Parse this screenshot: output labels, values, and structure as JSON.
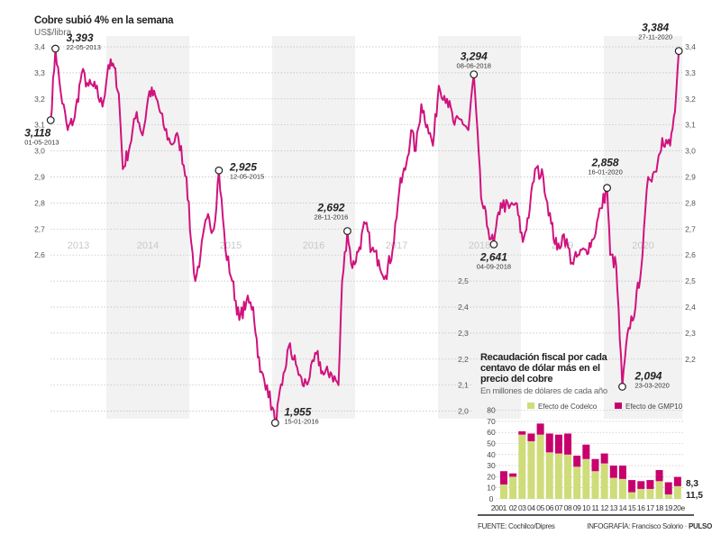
{
  "colors": {
    "line": "#d0127d",
    "codelco": "#cfdc7a",
    "gmp10": "#c8006e",
    "shade": "#f2f2f2",
    "grid": "#bbbbbb"
  },
  "chart_data": [
    {
      "type": "line",
      "title": "Cobre subió 4% en la semana",
      "ylabel": "US$/libra",
      "ylim": [
        2.0,
        3.4
      ],
      "yticks": [
        "3,4",
        "3,3",
        "3,2",
        "3,1",
        "3,0",
        "2,9",
        "2,8",
        "2,7",
        "2,6",
        "2,5",
        "2,4",
        "2,3",
        "2,2",
        "2,1",
        "2,0"
      ],
      "right_yticks": [
        "3,4",
        "3,3",
        "3,2",
        "3,1",
        "3,0",
        "2,9",
        "2,8",
        "2,7",
        "2,6",
        "2,5",
        "2,4",
        "2,3",
        "2,2"
      ],
      "year_labels": [
        "2013",
        "2014",
        "2015",
        "2016",
        "2017",
        "2018",
        "2019",
        "2020"
      ],
      "grid": true,
      "series": {
        "x": [
          "2013-05-01",
          "2013-05-22",
          "2013-06-15",
          "2013-07-15",
          "2013-08-15",
          "2013-09-15",
          "2013-10-15",
          "2013-11-15",
          "2013-12-15",
          "2014-01-10",
          "2014-02-05",
          "2014-02-25",
          "2014-03-15",
          "2014-04-15",
          "2014-05-15",
          "2014-06-10",
          "2014-07-10",
          "2014-08-10",
          "2014-09-10",
          "2014-10-10",
          "2014-11-15",
          "2014-12-20",
          "2015-01-10",
          "2015-01-28",
          "2015-02-20",
          "2015-03-20",
          "2015-04-20",
          "2015-05-12",
          "2015-06-10",
          "2015-07-10",
          "2015-08-10",
          "2015-09-10",
          "2015-10-10",
          "2015-11-10",
          "2015-12-10",
          "2016-01-15",
          "2016-02-15",
          "2016-03-15",
          "2016-04-15",
          "2016-05-15",
          "2016-06-15",
          "2016-07-15",
          "2016-08-15",
          "2016-09-15",
          "2016-10-20",
          "2016-11-05",
          "2016-11-28",
          "2016-12-20",
          "2017-01-20",
          "2017-02-15",
          "2017-03-15",
          "2017-04-15",
          "2017-05-15",
          "2017-06-15",
          "2017-07-15",
          "2017-08-15",
          "2017-09-05",
          "2017-09-25",
          "2017-10-20",
          "2017-11-15",
          "2017-12-10",
          "2018-01-05",
          "2018-02-10",
          "2018-03-15",
          "2018-04-15",
          "2018-05-15",
          "2018-06-08",
          "2018-07-10",
          "2018-08-10",
          "2018-09-04",
          "2018-10-05",
          "2018-11-10",
          "2018-12-10",
          "2019-01-10",
          "2019-02-10",
          "2019-03-05",
          "2019-04-10",
          "2019-05-15",
          "2019-06-10",
          "2019-07-10",
          "2019-08-15",
          "2019-09-15",
          "2019-10-15",
          "2019-11-15",
          "2019-12-20",
          "2020-01-16",
          "2020-01-30",
          "2020-02-25",
          "2020-03-23",
          "2020-04-20",
          "2020-05-20",
          "2020-06-20",
          "2020-07-15",
          "2020-08-15",
          "2020-09-15",
          "2020-10-20",
          "2020-11-10",
          "2020-11-27"
        ],
        "y": [
          3.118,
          3.393,
          3.22,
          3.08,
          3.13,
          3.3,
          3.25,
          3.24,
          3.17,
          3.33,
          3.32,
          3.22,
          2.93,
          3.02,
          3.15,
          3.06,
          3.23,
          3.2,
          3.1,
          3.03,
          3.05,
          2.9,
          2.65,
          2.5,
          2.6,
          2.74,
          2.7,
          2.925,
          2.62,
          2.5,
          2.35,
          2.42,
          2.4,
          2.15,
          2.1,
          1.955,
          2.1,
          2.25,
          2.18,
          2.1,
          2.13,
          2.22,
          2.14,
          2.15,
          2.1,
          2.5,
          2.692,
          2.55,
          2.63,
          2.72,
          2.62,
          2.58,
          2.52,
          2.62,
          2.85,
          2.95,
          3.08,
          3.0,
          3.18,
          3.1,
          3.02,
          3.25,
          3.2,
          3.1,
          3.12,
          3.08,
          3.294,
          2.82,
          2.7,
          2.641,
          2.8,
          2.78,
          2.8,
          2.65,
          2.78,
          2.93,
          2.9,
          2.72,
          2.62,
          2.68,
          2.57,
          2.6,
          2.62,
          2.66,
          2.78,
          2.858,
          2.6,
          2.56,
          2.094,
          2.32,
          2.4,
          2.6,
          2.9,
          2.92,
          3.05,
          3.02,
          3.15,
          3.384
        ]
      },
      "annotations": [
        {
          "value": "3,118",
          "date": "01-05-2013",
          "x": "2013-05-01",
          "y": 3.118
        },
        {
          "value": "3,393",
          "date": "22-05-2013",
          "x": "2013-05-22",
          "y": 3.393
        },
        {
          "value": "2,925",
          "date": "12-05-2015",
          "x": "2015-05-12",
          "y": 2.925
        },
        {
          "value": "1,955",
          "date": "15-01-2016",
          "x": "2016-01-15",
          "y": 1.955
        },
        {
          "value": "2,692",
          "date": "28-11-2016",
          "x": "2016-11-28",
          "y": 2.692
        },
        {
          "value": "3,294",
          "date": "08-06-2018",
          "x": "2018-06-08",
          "y": 3.294
        },
        {
          "value": "2,641",
          "date": "04-09-2018",
          "x": "2018-09-04",
          "y": 2.641
        },
        {
          "value": "2,858",
          "date": "16-01-2020",
          "x": "2020-01-16",
          "y": 2.858
        },
        {
          "value": "2,094",
          "date": "23-03-2020",
          "x": "2020-03-23",
          "y": 2.094
        },
        {
          "value": "3,384",
          "date": "27-11-2020",
          "x": "2020-11-27",
          "y": 3.384
        }
      ]
    },
    {
      "type": "bar",
      "stacked": true,
      "title": "Recaudación fiscal por cada centavo de dólar más en el precio del cobre",
      "subtitle": "En millones de dólares de cada año",
      "categories": [
        "2001",
        "02",
        "03",
        "04",
        "05",
        "06",
        "07",
        "08",
        "09",
        "10",
        "11",
        "12",
        "13",
        "14",
        "15",
        "16",
        "17",
        "18",
        "19",
        "20e"
      ],
      "ylim": [
        0,
        80
      ],
      "yticks": [
        "80",
        "70",
        "60",
        "50",
        "40",
        "30",
        "20",
        "10",
        "0"
      ],
      "legend": "top",
      "series": [
        {
          "name": "Efecto de Codelco",
          "values": [
            13,
            20,
            58,
            52,
            58,
            42,
            41,
            40,
            29,
            36,
            25,
            32,
            19,
            18,
            6,
            9,
            9,
            16,
            4,
            11.5
          ]
        },
        {
          "name": "Efecto de GMP10",
          "values": [
            12,
            3,
            3,
            7,
            10,
            17,
            17,
            19,
            10,
            13,
            11,
            9,
            11,
            12,
            11,
            7,
            8,
            10,
            11,
            8.3
          ]
        }
      ],
      "data_labels": [
        "8,3",
        "11,5"
      ]
    }
  ],
  "footer": {
    "source": "FUENTE: Cochilco/Dipres",
    "credit_label": "INFOGRAFÍA: Francisco Solorio · ",
    "credit_brand": "PULSO"
  }
}
